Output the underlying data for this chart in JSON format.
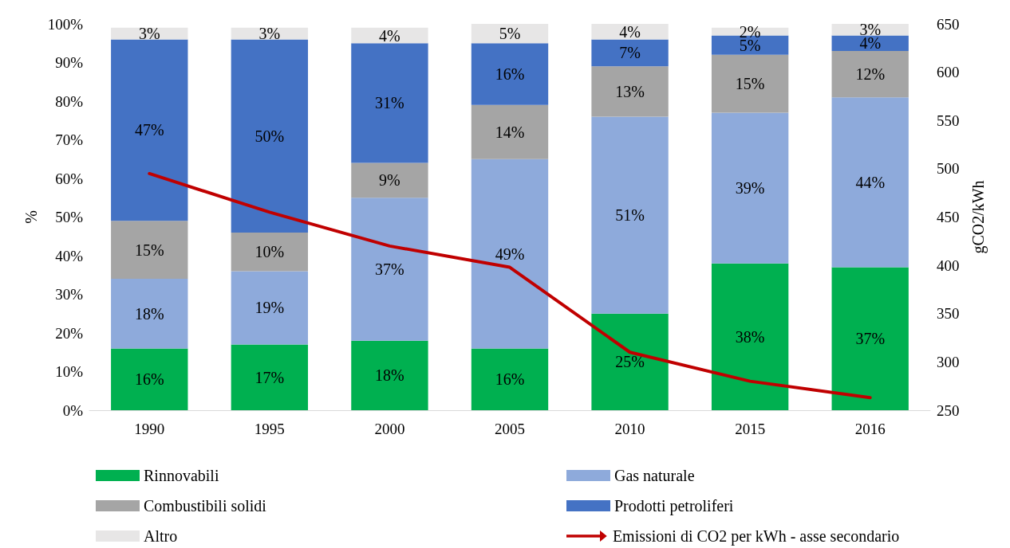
{
  "chart_data": {
    "type": "bar",
    "stacked": true,
    "categories": [
      "1990",
      "1995",
      "2000",
      "2005",
      "2010",
      "2015",
      "2016"
    ],
    "ylabel": "%",
    "y2label": "gCO2/kWh",
    "ylim": [
      0,
      100
    ],
    "yticks": [
      {
        "value": 0,
        "label": "0%"
      },
      {
        "value": 10,
        "label": "10%"
      },
      {
        "value": 20,
        "label": "20%"
      },
      {
        "value": 30,
        "label": "30%"
      },
      {
        "value": 40,
        "label": "40%"
      },
      {
        "value": 50,
        "label": "50%"
      },
      {
        "value": 60,
        "label": "60%"
      },
      {
        "value": 70,
        "label": "70%"
      },
      {
        "value": 80,
        "label": "80%"
      },
      {
        "value": 90,
        "label": "90%"
      },
      {
        "value": 100,
        "label": "100%"
      }
    ],
    "y2lim": [
      250,
      650
    ],
    "y2ticks": [
      250,
      300,
      350,
      400,
      450,
      500,
      550,
      600,
      650
    ],
    "grid": false,
    "legend": "bottom",
    "series": [
      {
        "name": "Rinnovabili",
        "color": "#00b050",
        "values": [
          16,
          17,
          18,
          16,
          25,
          38,
          37
        ],
        "value_labels": [
          "16%",
          "17%",
          "18%",
          "16%",
          "25%",
          "38%",
          "37%"
        ]
      },
      {
        "name": "Gas naturale",
        "color": "#8eaadb",
        "values": [
          18,
          19,
          37,
          49,
          51,
          39,
          44
        ],
        "value_labels": [
          "18%",
          "19%",
          "37%",
          "49%",
          "51%",
          "39%",
          "44%"
        ]
      },
      {
        "name": "Combustibili solidi",
        "color": "#a5a5a5",
        "values": [
          15,
          10,
          9,
          14,
          13,
          15,
          12
        ],
        "value_labels": [
          "15%",
          "10%",
          "9%",
          "14%",
          "13%",
          "15%",
          "12%"
        ]
      },
      {
        "name": "Prodotti petroliferi",
        "color": "#4472c4",
        "values": [
          47,
          50,
          31,
          16,
          7,
          5,
          4
        ],
        "value_labels": [
          "47%",
          "50%",
          "31%",
          "16%",
          "7%",
          "5%",
          "4%"
        ]
      },
      {
        "name": "Altro",
        "color": "#e7e6e6",
        "values": [
          3,
          3,
          4,
          5,
          4,
          2,
          3
        ],
        "value_labels": [
          "3%",
          "3%",
          "4%",
          "5%",
          "4%",
          "2%",
          "3%"
        ]
      },
      {
        "name": "Emissioni di CO2 per kWh - asse secondario",
        "type": "line",
        "axis": "y2",
        "color": "#c00000",
        "marker": "none",
        "line_style": "solid",
        "values": [
          495,
          455,
          420,
          398,
          310,
          280,
          263
        ]
      }
    ]
  }
}
